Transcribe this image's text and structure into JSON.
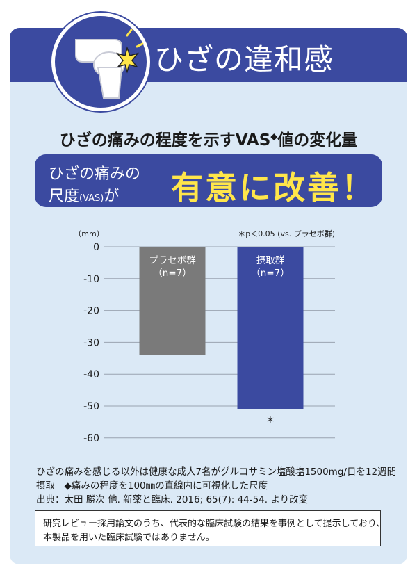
{
  "header": {
    "title": "ひざの違和感",
    "icon": "knee-pain-icon"
  },
  "subtitle": {
    "text": "ひざの痛みの程度を示すVAS",
    "mark": "◆",
    "suffix": "値の変化量"
  },
  "banner": {
    "line1": "ひざの痛みの",
    "line2_pre": "尺度",
    "line2_small": "(VAS)",
    "line2_post": "が",
    "highlight": "有意に改善！"
  },
  "chart_data": {
    "type": "bar",
    "unit_label": "（mm）",
    "significance_note": "＊p＜0.05 (vs. プラセボ群)",
    "categories": [
      "プラセボ群\n（n=7）",
      "摂取群\n（n=7）"
    ],
    "values": [
      -34,
      -51
    ],
    "bar_colors": [
      "#7a7a7a",
      "#3b4aa0"
    ],
    "yticks": [
      "0",
      "-10",
      "-20",
      "-30",
      "-40",
      "-50",
      "-60"
    ],
    "ylim": [
      -60,
      0
    ],
    "significance_marker": "＊",
    "grid": true
  },
  "notes": {
    "line1": "ひざの痛みを感じる以外は健康な成人7名がグルコサミン塩酸塩1500mg/日を12週間",
    "line2": "摂取　◆痛みの程度を100㎜の直線内に可視化した尺度",
    "line3": "出典：太田 勝次 他. 新薬と臨床. 2016; 65(7): 44-54. より改変"
  },
  "disclaimer": {
    "line1": "研究レビュー採用論文のうち、代表的な臨床試験の結果を事例として提示しており、",
    "line2": "本製品を用いた臨床試験ではありません。"
  },
  "colors": {
    "brand": "#3b4aa0",
    "panel": "#dbe9f6",
    "highlight": "#ffe64a",
    "placebo": "#7a7a7a"
  }
}
